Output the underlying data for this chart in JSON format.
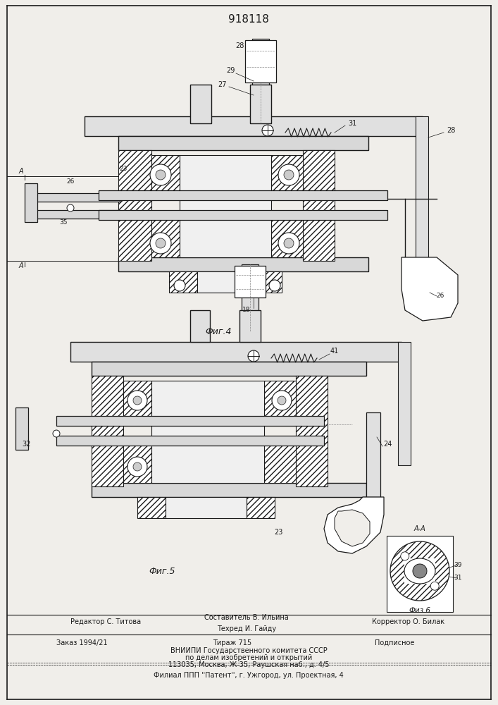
{
  "patent_number": "918118",
  "bg": "#f0eeea",
  "lc": "#1a1a1a",
  "hatch": "////",
  "fig4_caption": "Фиг.4",
  "fig5_caption": "Фиг.5",
  "fig6_caption": "Физ.6",
  "aa_label": "А-А",
  "footer_editor": "Редактор С. Титова",
  "footer_composer": "Составитель В. Ильина",
  "footer_tech": "Техред И. Гайду",
  "footer_corrector": "Корректор О. Билак",
  "footer_order": "Заказ 1994/21",
  "footer_circ": "Тираж 715",
  "footer_sub": "Подписное",
  "footer_inst": "ВНИИПИ Государственного комитета СССР",
  "footer_dept": "по делам изобретений и открытий",
  "footer_addr": "113035, Москва, Ж-35, Раушская наб., д. 4/5",
  "footer_branch": "Филиал ППП ''Патент'', г. Ужгород, ул. Проектная, 4"
}
